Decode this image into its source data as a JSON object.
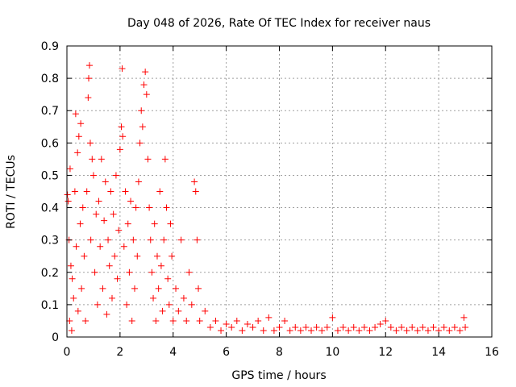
{
  "chart_data": {
    "type": "scatter",
    "title": "Day 048 of 2026, Rate Of TEC Index for receiver naus",
    "xlabel": "GPS time / hours",
    "ylabel": "ROTI / TECUs",
    "xlim": [
      0,
      16
    ],
    "ylim": [
      0,
      0.9
    ],
    "xticks": [
      0,
      2,
      4,
      6,
      8,
      10,
      12,
      14,
      16
    ],
    "yticks": [
      0,
      0.1,
      0.2,
      0.3,
      0.4,
      0.5,
      0.6,
      0.7,
      0.8,
      0.9
    ],
    "grid": true,
    "marker": "+",
    "color": "#ff0000",
    "series": [
      {
        "name": "ROTI",
        "points": [
          [
            0.02,
            0.44
          ],
          [
            0.05,
            0.42
          ],
          [
            0.08,
            0.3
          ],
          [
            0.1,
            0.05
          ],
          [
            0.12,
            0.52
          ],
          [
            0.15,
            0.22
          ],
          [
            0.18,
            0.02
          ],
          [
            0.2,
            0.18
          ],
          [
            0.25,
            0.12
          ],
          [
            0.3,
            0.45
          ],
          [
            0.33,
            0.69
          ],
          [
            0.35,
            0.28
          ],
          [
            0.4,
            0.57
          ],
          [
            0.42,
            0.08
          ],
          [
            0.45,
            0.62
          ],
          [
            0.5,
            0.35
          ],
          [
            0.52,
            0.66
          ],
          [
            0.55,
            0.15
          ],
          [
            0.6,
            0.4
          ],
          [
            0.65,
            0.25
          ],
          [
            0.7,
            0.05
          ],
          [
            0.75,
            0.45
          ],
          [
            0.8,
            0.74
          ],
          [
            0.82,
            0.8
          ],
          [
            0.85,
            0.84
          ],
          [
            0.88,
            0.6
          ],
          [
            0.9,
            0.3
          ],
          [
            0.95,
            0.55
          ],
          [
            1.0,
            0.5
          ],
          [
            1.05,
            0.2
          ],
          [
            1.1,
            0.38
          ],
          [
            1.15,
            0.1
          ],
          [
            1.2,
            0.42
          ],
          [
            1.25,
            0.28
          ],
          [
            1.3,
            0.55
          ],
          [
            1.35,
            0.15
          ],
          [
            1.4,
            0.36
          ],
          [
            1.45,
            0.48
          ],
          [
            1.5,
            0.07
          ],
          [
            1.55,
            0.3
          ],
          [
            1.6,
            0.22
          ],
          [
            1.65,
            0.45
          ],
          [
            1.7,
            0.12
          ],
          [
            1.75,
            0.38
          ],
          [
            1.8,
            0.25
          ],
          [
            1.85,
            0.5
          ],
          [
            1.9,
            0.18
          ],
          [
            1.95,
            0.33
          ],
          [
            2.0,
            0.58
          ],
          [
            2.05,
            0.65
          ],
          [
            2.08,
            0.83
          ],
          [
            2.1,
            0.62
          ],
          [
            2.15,
            0.28
          ],
          [
            2.2,
            0.45
          ],
          [
            2.25,
            0.1
          ],
          [
            2.3,
            0.35
          ],
          [
            2.35,
            0.2
          ],
          [
            2.4,
            0.42
          ],
          [
            2.45,
            0.05
          ],
          [
            2.5,
            0.3
          ],
          [
            2.55,
            0.15
          ],
          [
            2.6,
            0.4
          ],
          [
            2.65,
            0.25
          ],
          [
            2.7,
            0.48
          ],
          [
            2.75,
            0.6
          ],
          [
            2.8,
            0.7
          ],
          [
            2.85,
            0.65
          ],
          [
            2.9,
            0.78
          ],
          [
            2.95,
            0.82
          ],
          [
            3.0,
            0.75
          ],
          [
            3.05,
            0.55
          ],
          [
            3.1,
            0.4
          ],
          [
            3.15,
            0.3
          ],
          [
            3.2,
            0.2
          ],
          [
            3.25,
            0.12
          ],
          [
            3.3,
            0.35
          ],
          [
            3.35,
            0.05
          ],
          [
            3.4,
            0.25
          ],
          [
            3.45,
            0.15
          ],
          [
            3.5,
            0.45
          ],
          [
            3.55,
            0.22
          ],
          [
            3.6,
            0.08
          ],
          [
            3.65,
            0.3
          ],
          [
            3.7,
            0.55
          ],
          [
            3.75,
            0.4
          ],
          [
            3.8,
            0.18
          ],
          [
            3.85,
            0.1
          ],
          [
            3.9,
            0.35
          ],
          [
            3.95,
            0.25
          ],
          [
            4.0,
            0.05
          ],
          [
            4.1,
            0.15
          ],
          [
            4.2,
            0.08
          ],
          [
            4.3,
            0.3
          ],
          [
            4.4,
            0.12
          ],
          [
            4.5,
            0.05
          ],
          [
            4.6,
            0.2
          ],
          [
            4.7,
            0.1
          ],
          [
            4.8,
            0.48
          ],
          [
            4.85,
            0.45
          ],
          [
            4.9,
            0.3
          ],
          [
            4.95,
            0.15
          ],
          [
            5.0,
            0.05
          ],
          [
            5.2,
            0.08
          ],
          [
            5.4,
            0.03
          ],
          [
            5.6,
            0.05
          ],
          [
            5.8,
            0.02
          ],
          [
            6.0,
            0.04
          ],
          [
            6.2,
            0.03
          ],
          [
            6.4,
            0.05
          ],
          [
            6.6,
            0.02
          ],
          [
            6.8,
            0.04
          ],
          [
            7.0,
            0.03
          ],
          [
            7.2,
            0.05
          ],
          [
            7.4,
            0.02
          ],
          [
            7.6,
            0.06
          ],
          [
            7.8,
            0.02
          ],
          [
            8.0,
            0.03
          ],
          [
            8.2,
            0.05
          ],
          [
            8.4,
            0.02
          ],
          [
            8.6,
            0.03
          ],
          [
            8.8,
            0.02
          ],
          [
            9.0,
            0.03
          ],
          [
            9.2,
            0.02
          ],
          [
            9.4,
            0.03
          ],
          [
            9.6,
            0.02
          ],
          [
            9.8,
            0.03
          ],
          [
            10.0,
            0.06
          ],
          [
            10.2,
            0.02
          ],
          [
            10.4,
            0.03
          ],
          [
            10.6,
            0.02
          ],
          [
            10.8,
            0.03
          ],
          [
            11.0,
            0.02
          ],
          [
            11.2,
            0.03
          ],
          [
            11.4,
            0.02
          ],
          [
            11.6,
            0.03
          ],
          [
            11.8,
            0.04
          ],
          [
            12.0,
            0.05
          ],
          [
            12.2,
            0.03
          ],
          [
            12.4,
            0.02
          ],
          [
            12.6,
            0.03
          ],
          [
            12.8,
            0.02
          ],
          [
            13.0,
            0.03
          ],
          [
            13.2,
            0.02
          ],
          [
            13.4,
            0.03
          ],
          [
            13.6,
            0.02
          ],
          [
            13.8,
            0.03
          ],
          [
            14.0,
            0.02
          ],
          [
            14.2,
            0.03
          ],
          [
            14.4,
            0.02
          ],
          [
            14.6,
            0.03
          ],
          [
            14.8,
            0.02
          ],
          [
            14.95,
            0.06
          ],
          [
            15.0,
            0.03
          ]
        ]
      }
    ]
  }
}
